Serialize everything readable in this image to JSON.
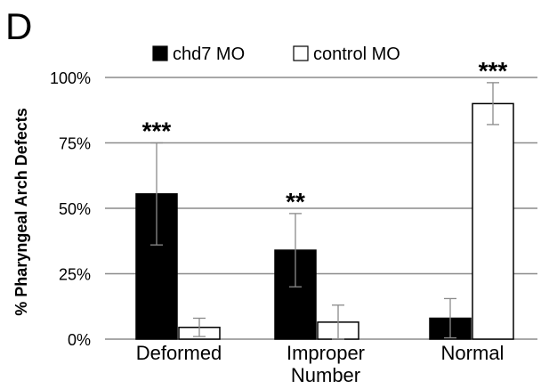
{
  "panel_label": "D",
  "chart_data": {
    "type": "bar",
    "title": "",
    "xlabel": "",
    "ylabel": "% Pharyngeal Arch Defects",
    "ylim": [
      0,
      100
    ],
    "y_ticks": [
      "0%",
      "25%",
      "50%",
      "75%",
      "100%"
    ],
    "y_tick_values": [
      0,
      25,
      50,
      75,
      100
    ],
    "grid": true,
    "legend_position": "top",
    "categories": [
      {
        "lines": [
          "Deformed"
        ]
      },
      {
        "lines": [
          "Improper",
          "Number"
        ]
      },
      {
        "lines": [
          "Normal"
        ]
      }
    ],
    "series": [
      {
        "name": "chd7 MO",
        "color": "#000000",
        "values": [
          55.5,
          34,
          8
        ],
        "error": [
          19.5,
          14,
          7.5
        ]
      },
      {
        "name": "control MO",
        "color": "#ffffff",
        "values": [
          4.5,
          6.5,
          90
        ],
        "error": [
          3.5,
          6.5,
          8
        ]
      }
    ],
    "significance": [
      {
        "category": 0,
        "series": 0,
        "text": "***"
      },
      {
        "category": 1,
        "series": 0,
        "text": "**"
      },
      {
        "category": 2,
        "series": 1,
        "text": "***"
      }
    ]
  }
}
